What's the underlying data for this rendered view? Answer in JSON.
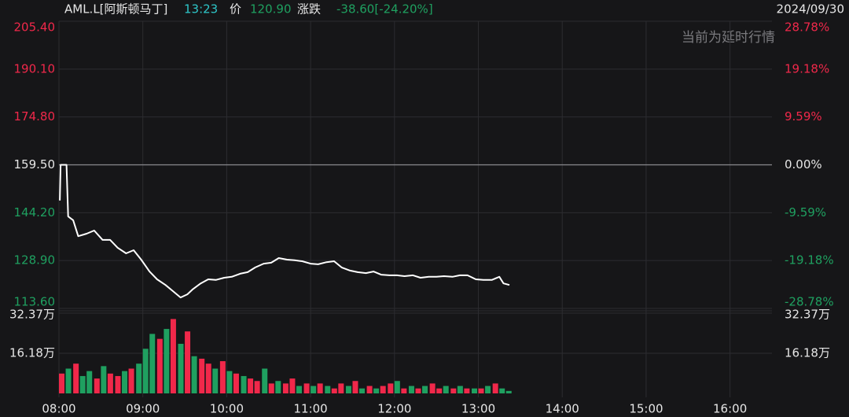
{
  "header": {
    "symbol": "AML.L[阿斯顿马丁]",
    "time": "13:23",
    "price_label": "价",
    "price": "120.90",
    "change_label": "涨跌",
    "change": "-38.60[-24.20%]",
    "date": "2024/09/30",
    "watermark": "当前为延时行情"
  },
  "chart_data": {
    "type": "line",
    "baseline": 159.5,
    "ylim": [
      113.6,
      205.4
    ],
    "yticks": [
      {
        "value": 205.4,
        "label": "205.40"
      },
      {
        "value": 190.1,
        "label": "190.10"
      },
      {
        "value": 174.8,
        "label": "174.80"
      },
      {
        "value": 159.5,
        "label": "159.50"
      },
      {
        "value": 144.2,
        "label": "144.20"
      },
      {
        "value": 128.9,
        "label": "128.90"
      },
      {
        "value": 113.6,
        "label": "113.60"
      }
    ],
    "y2lim": [
      -28.78,
      28.78
    ],
    "y2ticks": [
      {
        "value": 28.78,
        "label": "28.78%"
      },
      {
        "value": 19.18,
        "label": "19.18%"
      },
      {
        "value": 9.59,
        "label": "9.59%"
      },
      {
        "value": 0,
        "label": "0.00%"
      },
      {
        "value": -9.59,
        "label": "-9.59%"
      },
      {
        "value": -19.18,
        "label": "-19.18%"
      },
      {
        "value": -28.78,
        "label": "-28.78%"
      }
    ],
    "up_color": "#f0284a",
    "down_color": "#1fa060",
    "xlim": [
      8,
      16.5
    ],
    "xticks": [
      {
        "value": 8,
        "label": "08:00"
      },
      {
        "value": 9,
        "label": "09:00"
      },
      {
        "value": 10,
        "label": "10:00"
      },
      {
        "value": 11,
        "label": "11:00"
      },
      {
        "value": 12,
        "label": "12:00"
      },
      {
        "value": 13,
        "label": "13:00"
      },
      {
        "value": 14,
        "label": "14:00"
      },
      {
        "value": 15,
        "label": "15:00"
      },
      {
        "value": 16,
        "label": "16:00"
      }
    ],
    "series": [
      {
        "color": "#ffffff",
        "x": [
          8.01,
          8.02,
          8.09,
          8.11,
          8.17,
          8.23,
          8.33,
          8.42,
          8.52,
          8.61,
          8.7,
          8.8,
          8.89,
          8.98,
          9.08,
          9.17,
          9.27,
          9.36,
          9.45,
          9.53,
          9.59,
          9.69,
          9.78,
          9.87,
          9.97,
          10.06,
          10.16,
          10.25,
          10.34,
          10.44,
          10.53,
          10.62,
          10.72,
          10.81,
          10.9,
          11.0,
          11.09,
          11.19,
          11.28,
          11.37,
          11.47,
          11.56,
          11.66,
          11.75,
          11.84,
          11.94,
          12.03,
          12.12,
          12.22,
          12.31,
          12.41,
          12.5,
          12.59,
          12.69,
          12.78,
          12.87,
          12.97,
          13.06,
          13.16,
          13.25,
          13.3,
          13.37
        ],
        "values": [
          148.1,
          159.5,
          159.5,
          143.0,
          141.8,
          136.7,
          137.5,
          138.5,
          135.5,
          135.5,
          133.0,
          131.2,
          132.2,
          129.2,
          125.4,
          122.9,
          121.1,
          119.1,
          117.1,
          118.1,
          119.6,
          121.6,
          122.9,
          122.7,
          123.4,
          123.7,
          124.7,
          125.2,
          126.7,
          127.9,
          128.2,
          129.7,
          129.2,
          129.0,
          128.7,
          127.9,
          127.7,
          128.4,
          128.7,
          126.7,
          125.7,
          125.2,
          124.9,
          125.4,
          124.4,
          124.2,
          124.2,
          123.9,
          124.2,
          123.4,
          123.7,
          123.7,
          123.9,
          123.7,
          124.2,
          124.2,
          122.9,
          122.7,
          122.7,
          123.7,
          121.6,
          121.1
        ]
      }
    ],
    "volume": {
      "ylim": [
        0,
        32.37
      ],
      "yticks": [
        {
          "value": 32.37,
          "label": "32.37万"
        },
        {
          "value": 16.18,
          "label": "16.18万"
        }
      ],
      "x": [
        8.0,
        8.08,
        8.17,
        8.25,
        8.33,
        8.42,
        8.5,
        8.58,
        8.67,
        8.75,
        8.83,
        8.92,
        9.0,
        9.08,
        9.17,
        9.25,
        9.33,
        9.42,
        9.5,
        9.58,
        9.67,
        9.75,
        9.83,
        9.92,
        10.0,
        10.08,
        10.17,
        10.25,
        10.33,
        10.42,
        10.5,
        10.58,
        10.67,
        10.75,
        10.83,
        10.92,
        11.0,
        11.08,
        11.17,
        11.25,
        11.33,
        11.42,
        11.5,
        11.58,
        11.67,
        11.75,
        11.83,
        11.92,
        12.0,
        12.08,
        12.17,
        12.25,
        12.33,
        12.42,
        12.5,
        12.58,
        12.67,
        12.75,
        12.83,
        12.92,
        13.0,
        13.08,
        13.17,
        13.25,
        13.33
      ],
      "values": [
        8,
        10,
        12,
        7,
        9,
        6,
        11,
        8,
        7,
        9,
        10,
        12,
        18,
        24,
        22,
        26,
        30,
        20,
        25,
        15,
        14,
        12,
        10,
        13,
        9,
        8,
        7,
        6,
        5,
        10,
        4,
        5,
        4,
        6,
        3,
        4,
        3,
        4,
        3,
        2,
        4,
        3,
        5,
        2,
        3,
        2,
        3,
        4,
        5,
        2,
        3,
        2,
        3,
        4,
        2,
        3,
        2,
        3,
        2,
        2,
        2,
        3,
        4,
        2,
        1
      ],
      "colors": [
        "#f0284a",
        "#1fa060",
        "#f0284a",
        "#1fa060",
        "#1fa060",
        "#f0284a",
        "#1fa060",
        "#f0284a",
        "#f0284a",
        "#1fa060",
        "#f0284a",
        "#1fa060",
        "#1fa060",
        "#1fa060",
        "#f0284a",
        "#1fa060",
        "#f0284a",
        "#1fa060",
        "#f0284a",
        "#1fa060",
        "#f0284a",
        "#f0284a",
        "#1fa060",
        "#f0284a",
        "#1fa060",
        "#f0284a",
        "#1fa060",
        "#f0284a",
        "#f0284a",
        "#1fa060",
        "#f0284a",
        "#1fa060",
        "#f0284a",
        "#f0284a",
        "#1fa060",
        "#f0284a",
        "#1fa060",
        "#f0284a",
        "#1fa060",
        "#f0284a",
        "#f0284a",
        "#1fa060",
        "#f0284a",
        "#1fa060",
        "#f0284a",
        "#1fa060",
        "#f0284a",
        "#f0284a",
        "#1fa060",
        "#f0284a",
        "#1fa060",
        "#f0284a",
        "#1fa060",
        "#f0284a",
        "#f0284a",
        "#1fa060",
        "#f0284a",
        "#1fa060",
        "#f0284a",
        "#1fa060",
        "#f0284a",
        "#1fa060",
        "#f0284a",
        "#1fa060",
        "#1fa060"
      ]
    }
  }
}
